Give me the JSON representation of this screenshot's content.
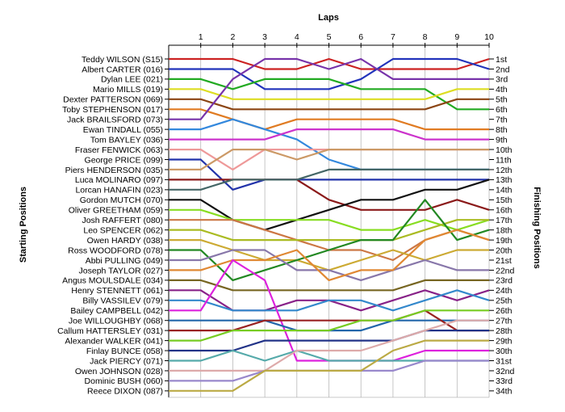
{
  "chart_data": {
    "type": "line",
    "title": "",
    "xlabel": "Laps",
    "ylabel_left": "Starting Positions",
    "ylabel_right": "Finishing Positions",
    "laps": [
      1,
      2,
      3,
      4,
      5,
      6,
      7,
      8,
      9,
      10
    ],
    "drivers": [
      "Teddy WILSON (S15)",
      "Albert CARTER (016)",
      "Dylan LEE (021)",
      "Mario MILLS (019)",
      "Dexter PATTERSON (069)",
      "Toby STEPHENSON (017)",
      "Jack BRAILSFORD (073)",
      "Ewan TINDALL (055)",
      "Tom BAYLEY (036)",
      "Fraser FENWICK (063)",
      "George PRICE (099)",
      "Piers HENDERSON (035)",
      "Luca MOLINARO (097)",
      "Lorcan HANAFIN (023)",
      "Gordon MUTCH (070)",
      "Oliver GREETHAM (059)",
      "Josh RAFFERT (080)",
      "Leo SPENCER (062)",
      "Owen HARDY (038)",
      "Ross WOODFORD (078)",
      "Abbi PULLING (049)",
      "Joseph TAYLOR (027)",
      "Angus MOULSDALE (034)",
      "Henry STENNETT (061)",
      "Billy VASSILEV (079)",
      "Bailey CAMPBELL (042)",
      "Joe WILLOUGHBY (068)",
      "Callum HATTERSLEY (031)",
      "Alexander WALKER (041)",
      "Finlay BUNCE (058)",
      "Jack PIERCY (071)",
      "Owen JOHNSON (028)",
      "Dominic BUSH (060)",
      "Reece DIXON (087)"
    ],
    "finishing_labels": [
      "1st",
      "2nd",
      "3rd",
      "4th",
      "5th",
      "6th",
      "7th",
      "8th",
      "9th",
      "10th",
      "11th",
      "12th",
      "13th",
      "14th",
      "15th",
      "16th",
      "17th",
      "18th",
      "19th",
      "20th",
      "21st",
      "22nd",
      "23rd",
      "24th",
      "25th",
      "26th",
      "27th",
      "28th",
      "29th",
      "30th",
      "31st",
      "32nd",
      "33rd",
      "34th"
    ],
    "series": [
      {
        "color": "#cc2222",
        "positions": [
          1,
          1,
          2,
          2,
          1,
          2,
          2,
          2,
          2,
          1
        ]
      },
      {
        "color": "#2233bb",
        "positions": [
          2,
          2,
          4,
          4,
          4,
          3,
          1,
          1,
          1,
          2
        ]
      },
      {
        "color": "#22aa22",
        "positions": [
          3,
          4,
          3,
          3,
          3,
          4,
          4,
          4,
          6,
          6
        ]
      },
      {
        "color": "#dddd22",
        "positions": [
          4,
          5,
          5,
          5,
          5,
          5,
          5,
          5,
          4,
          4
        ]
      },
      {
        "color": "#8b4513",
        "positions": [
          5,
          6,
          6,
          6,
          6,
          6,
          6,
          6,
          5,
          5
        ]
      },
      {
        "color": "#e07b22",
        "positions": [
          6,
          7,
          8,
          7,
          7,
          7,
          7,
          8,
          8,
          8
        ]
      },
      {
        "color": "#7733aa",
        "positions": [
          7,
          3,
          1,
          1,
          2,
          1,
          3,
          3,
          3,
          3
        ]
      },
      {
        "color": "#3388dd",
        "positions": [
          8,
          7,
          8,
          9,
          11,
          12,
          12,
          12,
          12,
          12
        ]
      },
      {
        "color": "#cc33cc",
        "positions": [
          9,
          9,
          9,
          8,
          8,
          8,
          8,
          9,
          9,
          9
        ]
      },
      {
        "color": "#ee9999",
        "positions": [
          10,
          12,
          10,
          10,
          10,
          10,
          10,
          10,
          10,
          10
        ]
      },
      {
        "color": "#2233aa",
        "positions": [
          11,
          14,
          13,
          13,
          13,
          13,
          13,
          13,
          13,
          13
        ]
      },
      {
        "color": "#cc9966",
        "positions": [
          12,
          10,
          10,
          11,
          10,
          10,
          10,
          10,
          10,
          10
        ]
      },
      {
        "color": "#8b1a1a",
        "positions": [
          13,
          13,
          13,
          13,
          15,
          16,
          16,
          16,
          15,
          16
        ]
      },
      {
        "color": "#446666",
        "positions": [
          14,
          13,
          13,
          13,
          12,
          12,
          12,
          12,
          12,
          12
        ]
      },
      {
        "color": "#111111",
        "positions": [
          15,
          17,
          18,
          17,
          16,
          15,
          15,
          14,
          14,
          13
        ]
      },
      {
        "color": "#88dd22",
        "positions": [
          16,
          17,
          17,
          17,
          17,
          18,
          18,
          17,
          18,
          17
        ]
      },
      {
        "color": "#cc7744",
        "positions": [
          17,
          17,
          18,
          19,
          20,
          20,
          21,
          19,
          18,
          19
        ]
      },
      {
        "color": "#aabb22",
        "positions": [
          18,
          19,
          19,
          19,
          19,
          19,
          19,
          18,
          17,
          17
        ]
      },
      {
        "color": "#ccaa33",
        "positions": [
          19,
          20,
          21,
          21,
          22,
          21,
          20,
          21,
          20,
          20
        ]
      },
      {
        "color": "#228822",
        "positions": [
          20,
          23,
          22,
          21,
          20,
          19,
          19,
          15,
          19,
          18
        ]
      },
      {
        "color": "#8877aa",
        "positions": [
          21,
          20,
          20,
          22,
          22,
          23,
          22,
          21,
          22,
          22
        ]
      },
      {
        "color": "#e08833",
        "positions": [
          22,
          21,
          21,
          20,
          23,
          22,
          22,
          19,
          18,
          19
        ]
      },
      {
        "color": "#776622",
        "positions": [
          23,
          24,
          24,
          24,
          24,
          24,
          24,
          23,
          23,
          23
        ]
      },
      {
        "color": "#882288",
        "positions": [
          24,
          26,
          26,
          25,
          25,
          26,
          25,
          24,
          25,
          24
        ]
      },
      {
        "color": "#3388cc",
        "positions": [
          25,
          26,
          26,
          26,
          25,
          25,
          26,
          25,
          24,
          25
        ]
      },
      {
        "color": "#dd22dd",
        "positions": [
          26,
          21,
          23,
          31,
          31,
          31,
          31,
          30,
          30,
          30
        ]
      },
      {
        "color": "#2266aa",
        "positions": [
          27,
          27,
          27,
          28,
          28,
          28,
          27,
          27,
          27,
          27
        ]
      },
      {
        "color": "#992222",
        "positions": [
          28,
          28,
          27,
          27,
          27,
          27,
          27,
          26,
          28,
          28
        ]
      },
      {
        "color": "#77cc22",
        "positions": [
          29,
          28,
          28,
          28,
          28,
          27,
          27,
          26,
          26,
          26
        ]
      },
      {
        "color": "#223388",
        "positions": [
          30,
          30,
          29,
          29,
          29,
          29,
          29,
          28,
          28,
          28
        ]
      },
      {
        "color": "#55aaaa",
        "positions": [
          31,
          30,
          31,
          30,
          31,
          31,
          31,
          31,
          31,
          31
        ]
      },
      {
        "color": "#ddaaaa",
        "positions": [
          32,
          32,
          32,
          30,
          30,
          30,
          29,
          28,
          27,
          27
        ]
      },
      {
        "color": "#9988cc",
        "positions": [
          33,
          33,
          32,
          32,
          32,
          32,
          32,
          31,
          31,
          31
        ]
      },
      {
        "color": "#bbaa44",
        "positions": [
          34,
          34,
          32,
          32,
          32,
          32,
          30,
          29,
          29,
          29
        ]
      }
    ]
  }
}
